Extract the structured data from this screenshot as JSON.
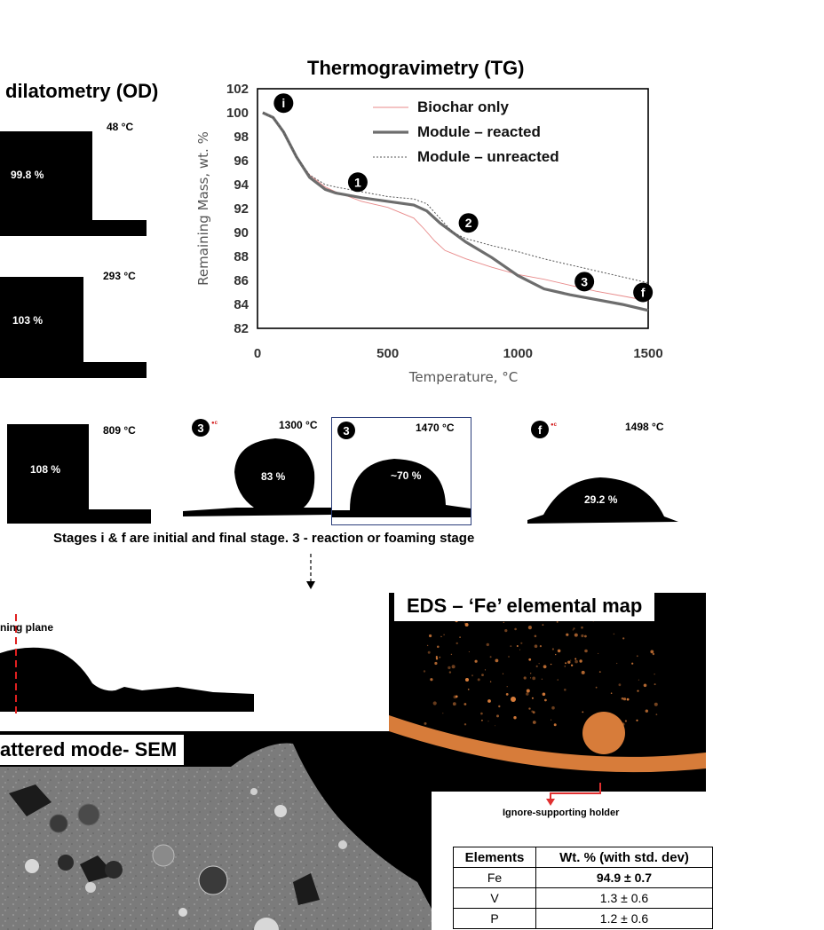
{
  "od": {
    "title": "dilatometry (OD)",
    "frames": [
      {
        "temp": "48 °C",
        "pct": "99.8 %"
      },
      {
        "temp": "293 °C",
        "pct": "103 %"
      },
      {
        "temp": "809 °C",
        "pct": "108 %"
      }
    ]
  },
  "chart_data": {
    "type": "line",
    "title": "Thermogravimetry (TG)",
    "xlabel": "Temperature, °C",
    "ylabel": "Remaining Mass, wt. %",
    "xlim": [
      0,
      1500
    ],
    "ylim": [
      82,
      102
    ],
    "xticks": [
      "0",
      "500",
      "1000",
      "1500"
    ],
    "yticks": [
      "82",
      "84",
      "86",
      "88",
      "90",
      "92",
      "94",
      "96",
      "98",
      "100",
      "102"
    ],
    "legend_position": "top-right",
    "series": [
      {
        "name": "Biochar only",
        "style": "thin-red",
        "x": [
          20,
          60,
          100,
          150,
          200,
          260,
          300,
          400,
          500,
          600,
          640,
          680,
          720,
          800,
          900,
          1000,
          1100,
          1200,
          1300,
          1400,
          1500
        ],
        "y": [
          100,
          99.6,
          98.4,
          96.3,
          94.8,
          93.8,
          93.4,
          92.6,
          92.1,
          91.2,
          90.3,
          89.3,
          88.5,
          87.8,
          87.1,
          86.5,
          86.1,
          85.6,
          85.1,
          84.7,
          84.3
        ]
      },
      {
        "name": "Module – reacted",
        "style": "thick-gray",
        "x": [
          20,
          60,
          100,
          150,
          200,
          260,
          300,
          400,
          500,
          600,
          650,
          700,
          750,
          800,
          900,
          1000,
          1100,
          1200,
          1300,
          1400,
          1500
        ],
        "y": [
          100,
          99.6,
          98.4,
          96.3,
          94.6,
          93.6,
          93.3,
          92.9,
          92.6,
          92.3,
          91.8,
          90.8,
          90.0,
          89.2,
          87.9,
          86.4,
          85.3,
          84.8,
          84.4,
          84.0,
          83.5
        ]
      },
      {
        "name": "Module – unreacted",
        "style": "dotted-gray",
        "x": [
          20,
          60,
          100,
          150,
          200,
          260,
          300,
          400,
          500,
          600,
          650,
          700,
          750,
          800,
          900,
          1000,
          1100,
          1200,
          1300,
          1400,
          1500
        ],
        "y": [
          100,
          99.6,
          98.4,
          96.3,
          94.8,
          94.0,
          93.8,
          93.4,
          93.0,
          92.8,
          92.4,
          91.2,
          90.0,
          89.5,
          88.9,
          88.4,
          87.8,
          87.3,
          86.8,
          86.3,
          85.8
        ]
      }
    ],
    "annotations": [
      {
        "label": "i",
        "x": 100,
        "y": 100.8
      },
      {
        "label": "1",
        "x": 385,
        "y": 94.2
      },
      {
        "label": "2",
        "x": 810,
        "y": 90.8
      },
      {
        "label": "3",
        "x": 1255,
        "y": 85.9
      },
      {
        "label": "f",
        "x": 1480,
        "y": 85.0
      }
    ]
  },
  "hsm": {
    "frames": [
      {
        "badge": "3",
        "temp": "1300 °C",
        "pct": "83 %"
      },
      {
        "badge": "3",
        "temp": "1470 °C",
        "pct": "~70 %"
      },
      {
        "badge": "f",
        "temp": "1498 °C",
        "pct": "29.2 %"
      }
    ],
    "caption": "Stages i & f are initial and final stage. 3 - reaction or foaming stage"
  },
  "sectioning_label": "ning plane",
  "sem_title": "attered mode- SEM",
  "eds": {
    "title": "EDS – ‘Fe’ elemental map",
    "ignore_label": "Ignore-supporting holder",
    "table": {
      "headers": [
        "Elements",
        "Wt. % (with std. dev)"
      ],
      "rows": [
        [
          "Fe",
          "94.9 ± 0.7"
        ],
        [
          "V",
          "1.3 ± 0.6"
        ],
        [
          "P",
          "1.2 ± 0.6"
        ]
      ]
    }
  },
  "colors": {
    "eds_orange": "#d77c3a",
    "sectioning_line": "#e02020",
    "holder_arrow": "#e03030"
  }
}
